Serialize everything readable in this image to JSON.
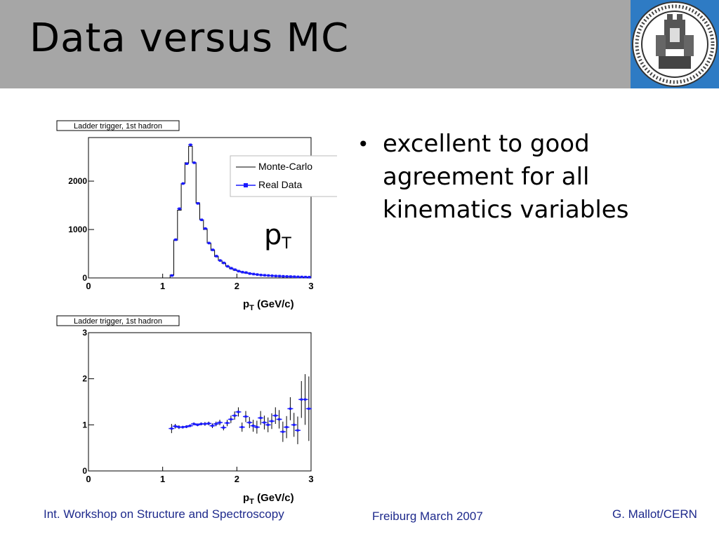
{
  "slide": {
    "title": "Data versus MC",
    "bullets": [
      "excellent to good agreement for all kinematics variables"
    ],
    "variable_label": {
      "main": "p",
      "sub": "T"
    },
    "footer": {
      "left": "Int. Workshop on Structure and Spectroscopy",
      "center": "Freiburg March 2007",
      "right": "G. Mallot/CERN"
    },
    "colors": {
      "header": "#a6a6a6",
      "footer_text": "#1e2a8c",
      "data_points": "#1a1aff"
    },
    "logo": "university-seal"
  },
  "chart_data": [
    {
      "type": "line",
      "title": "Ladder trigger, 1st hadron",
      "xlabel": "p_T (GeV/c)",
      "ylabel": "",
      "xlim": [
        0,
        3
      ],
      "ylim": [
        0,
        2900
      ],
      "xticks": [
        "0",
        "1",
        "2",
        "3"
      ],
      "yticks": [
        "0",
        "1000",
        "2000"
      ],
      "legend": {
        "position": "top-right",
        "entries": [
          "Monte-Carlo",
          "Real Data"
        ]
      },
      "series": [
        {
          "name": "Monte-Carlo",
          "style": "step",
          "x": [
            1.1,
            1.15,
            1.2,
            1.25,
            1.3,
            1.35,
            1.4,
            1.45,
            1.5,
            1.55,
            1.6,
            1.65,
            1.7,
            1.75,
            1.8,
            1.85,
            1.9,
            1.95,
            2.0,
            2.05,
            2.1,
            2.15,
            2.2,
            2.25,
            2.3,
            2.35,
            2.4,
            2.45,
            2.5,
            2.55,
            2.6,
            2.65,
            2.7,
            2.75,
            2.8,
            2.85,
            2.9,
            2.95
          ],
          "values": [
            60,
            780,
            1400,
            1950,
            2380,
            2720,
            2380,
            1550,
            1200,
            1000,
            720,
            570,
            440,
            360,
            300,
            240,
            190,
            160,
            140,
            120,
            100,
            90,
            80,
            70,
            60,
            55,
            50,
            45,
            40,
            35,
            32,
            30,
            28,
            25,
            22,
            20,
            18,
            15
          ]
        },
        {
          "name": "Real Data",
          "style": "markers",
          "x": [
            1.1,
            1.15,
            1.2,
            1.25,
            1.3,
            1.35,
            1.4,
            1.45,
            1.5,
            1.55,
            1.6,
            1.65,
            1.7,
            1.75,
            1.8,
            1.85,
            1.9,
            1.95,
            2.0,
            2.05,
            2.1,
            2.15,
            2.2,
            2.25,
            2.3,
            2.35,
            2.4,
            2.45,
            2.5,
            2.55,
            2.6,
            2.65,
            2.7,
            2.75,
            2.8,
            2.85,
            2.9,
            2.95
          ],
          "values": [
            50,
            790,
            1430,
            1950,
            2360,
            2750,
            2380,
            1540,
            1200,
            1020,
            720,
            580,
            450,
            360,
            310,
            240,
            200,
            170,
            140,
            120,
            110,
            90,
            80,
            70,
            60,
            55,
            50,
            45,
            40,
            38,
            34,
            30,
            28,
            25,
            22,
            20,
            18,
            16
          ]
        }
      ]
    },
    {
      "type": "scatter",
      "title": "Ladder trigger, 1st hadron",
      "xlabel": "p_T (GeV/c)",
      "ylabel": "",
      "xlim": [
        0,
        3
      ],
      "ylim": [
        0,
        3
      ],
      "xticks": [
        "0",
        "1",
        "2",
        "3"
      ],
      "yticks": [
        "0",
        "1",
        "2",
        "3"
      ],
      "series": [
        {
          "name": "",
          "x": [
            1.12,
            1.17,
            1.22,
            1.27,
            1.32,
            1.37,
            1.42,
            1.47,
            1.52,
            1.57,
            1.62,
            1.67,
            1.72,
            1.77,
            1.82,
            1.87,
            1.92,
            1.97,
            2.02,
            2.07,
            2.12,
            2.17,
            2.22,
            2.27,
            2.32,
            2.37,
            2.42,
            2.47,
            2.52,
            2.57,
            2.62,
            2.67,
            2.72,
            2.77,
            2.82,
            2.87,
            2.92,
            2.97
          ],
          "values": [
            0.92,
            0.97,
            0.95,
            0.95,
            0.96,
            0.98,
            1.02,
            1.0,
            1.02,
            1.02,
            1.03,
            0.98,
            1.02,
            1.05,
            0.94,
            1.04,
            1.12,
            1.2,
            1.28,
            0.95,
            1.18,
            1.05,
            0.98,
            0.95,
            1.15,
            1.05,
            1.0,
            1.08,
            1.2,
            1.12,
            0.85,
            0.95,
            1.35,
            1.0,
            0.88,
            1.55,
            1.55,
            1.35
          ],
          "errors": [
            0.1,
            0.05,
            0.04,
            0.03,
            0.03,
            0.03,
            0.03,
            0.03,
            0.03,
            0.04,
            0.04,
            0.05,
            0.05,
            0.06,
            0.06,
            0.07,
            0.08,
            0.09,
            0.1,
            0.1,
            0.12,
            0.12,
            0.13,
            0.14,
            0.15,
            0.15,
            0.16,
            0.17,
            0.18,
            0.2,
            0.22,
            0.24,
            0.25,
            0.26,
            0.3,
            0.4,
            0.55,
            0.7
          ]
        }
      ]
    }
  ]
}
